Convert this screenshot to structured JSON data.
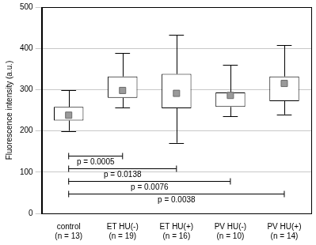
{
  "chart_data": {
    "type": "box",
    "y_label": "Fluorescence intensity (a.u.)",
    "categories": [
      [
        "control",
        "(n = 13)"
      ],
      [
        "ET HU(-)",
        "(n = 19)"
      ],
      [
        "ET HU(+)",
        "(n = 16)"
      ],
      [
        "PV HU(-)",
        "(n = 10)"
      ],
      [
        "PV HU(+)",
        "(n = 14)"
      ]
    ],
    "whisker_low": [
      200,
      257,
      171,
      235,
      240
    ],
    "q1": [
      225,
      280,
      255,
      258,
      272
    ],
    "median": [
      238,
      298,
      291,
      286,
      315
    ],
    "q3": [
      258,
      332,
      338,
      293,
      332
    ],
    "whisker_high": [
      298,
      388,
      432,
      360,
      408
    ],
    "marker": "square",
    "ylim": [
      0,
      500
    ],
    "yticks": [
      0,
      100,
      200,
      300,
      400,
      500
    ],
    "grid": true,
    "annotations": [
      {
        "x": [
          0,
          1
        ],
        "y": 140,
        "text": "p = 0.0005"
      },
      {
        "x": [
          0,
          2
        ],
        "y": 110,
        "text": "p = 0.0138"
      },
      {
        "x": [
          0,
          3
        ],
        "y": 78,
        "text": "p = 0.0076"
      },
      {
        "x": [
          0,
          4
        ],
        "y": 48,
        "text": "p = 0.0038"
      }
    ]
  }
}
